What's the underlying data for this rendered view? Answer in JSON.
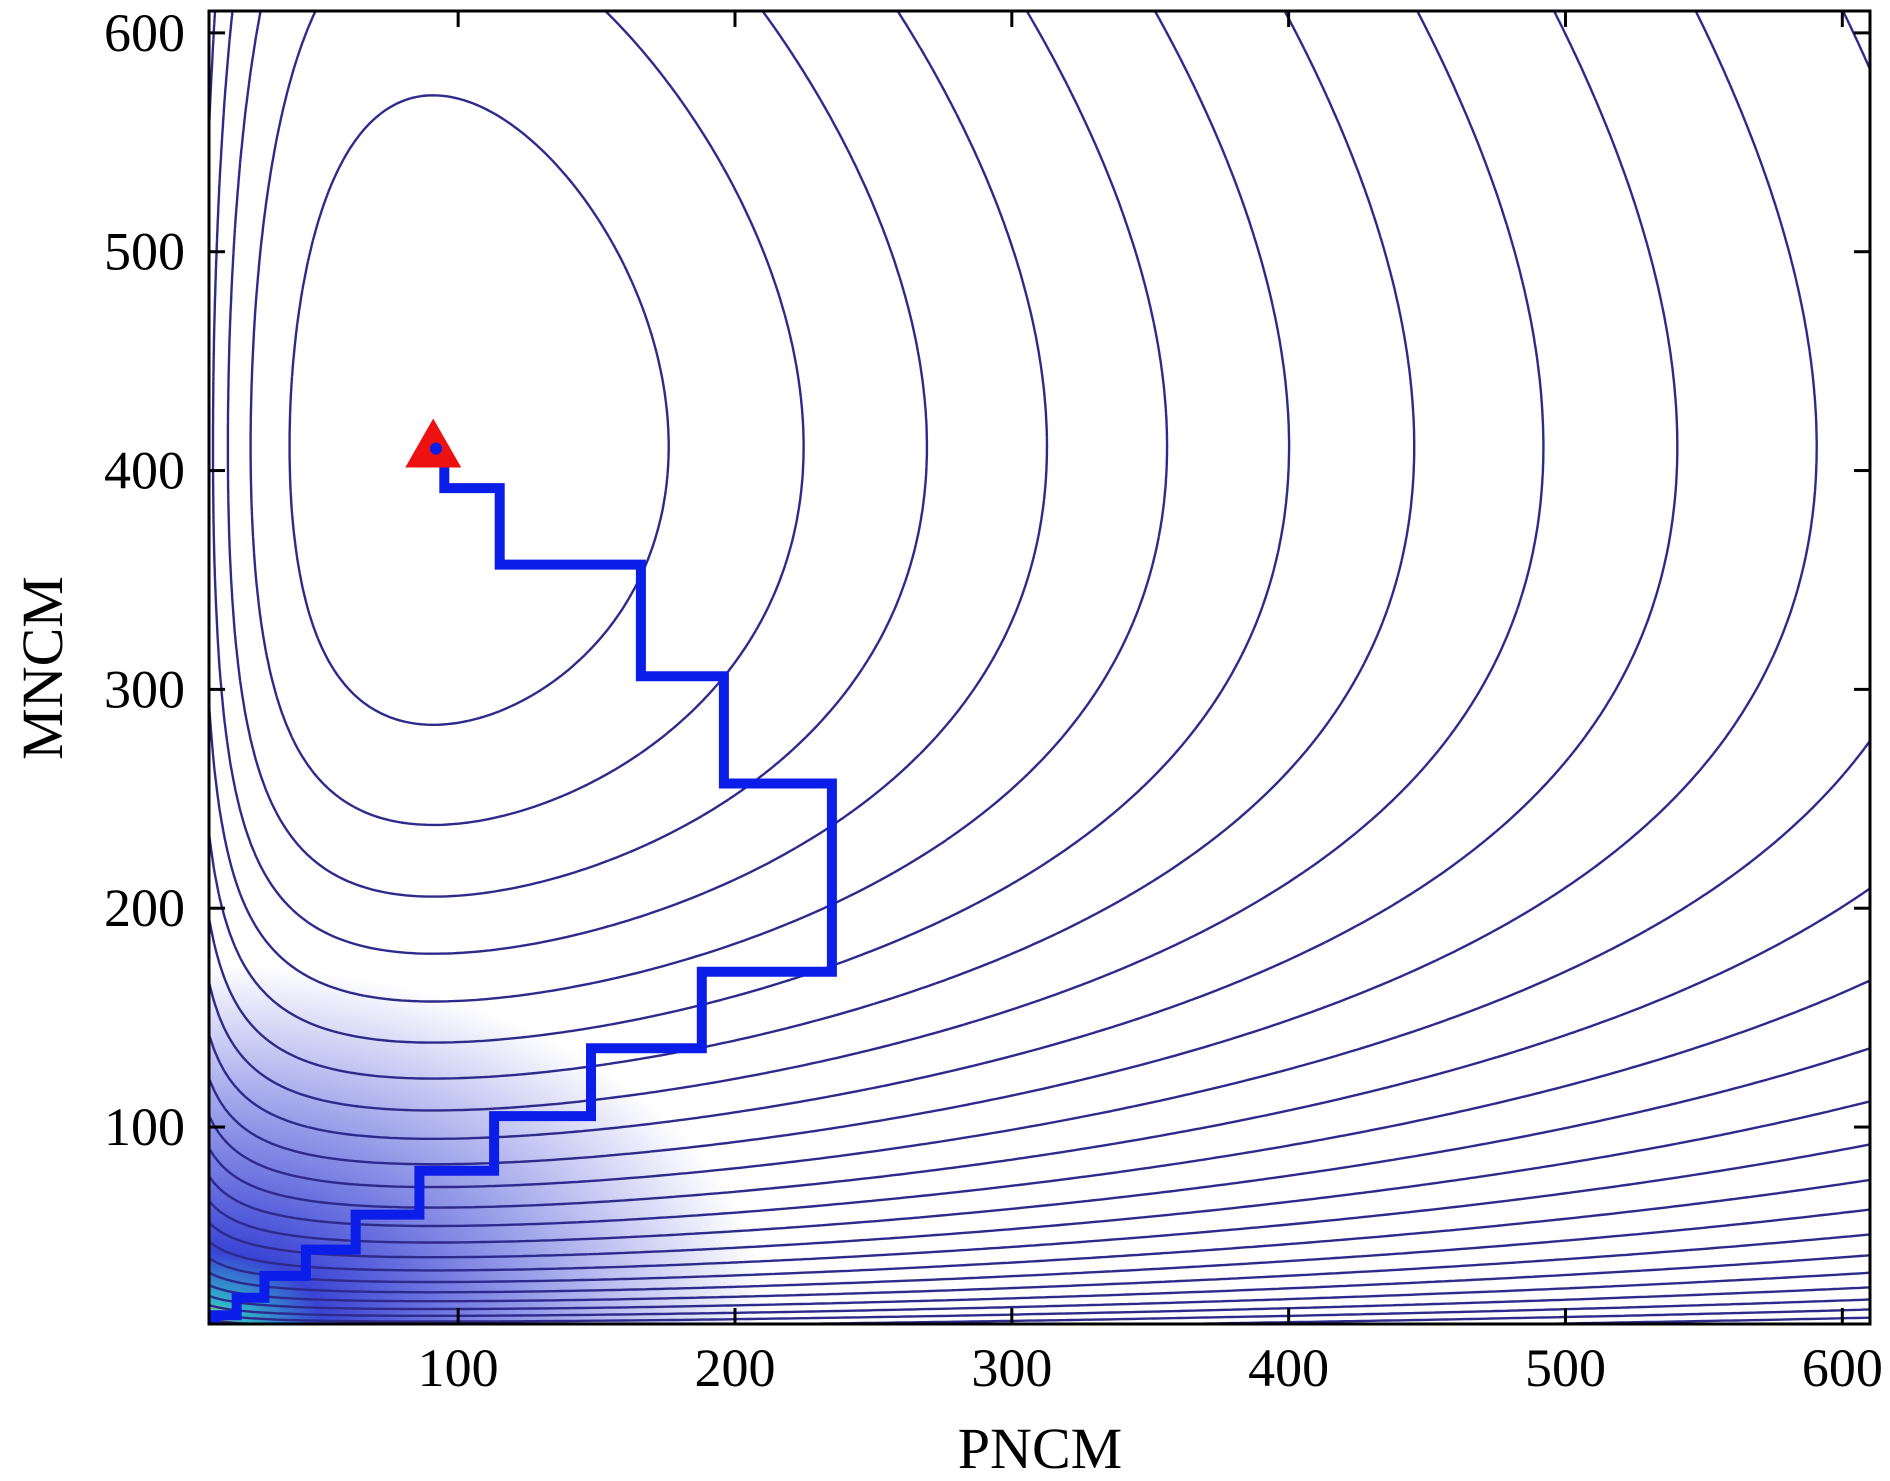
{
  "chart_data": {
    "type": "contour",
    "title": "",
    "xlabel": "PNCM",
    "ylabel": "MNCM",
    "xlim": [
      10,
      610
    ],
    "ylim": [
      10,
      610
    ],
    "x_ticks": [
      100,
      200,
      300,
      400,
      500,
      600
    ],
    "y_ticks": [
      100,
      200,
      300,
      400,
      500,
      600
    ],
    "grid": false,
    "contour_color": "#2e2a8c",
    "fill_colors": [
      "#3a44d4",
      "#2fb8c8",
      "#f0d020"
    ],
    "path_color": "#0b1de8",
    "marker_color": "#ee1111",
    "path": {
      "x": [
        12,
        12,
        20,
        20,
        30,
        30,
        45,
        45,
        63,
        63,
        86,
        86,
        113,
        113,
        148,
        148,
        188,
        188,
        235,
        235,
        196,
        196,
        166,
        166,
        115,
        115,
        95,
        95,
        92
      ],
      "y": [
        10,
        14,
        14,
        22,
        22,
        32,
        32,
        44,
        44,
        60,
        60,
        80,
        80,
        105,
        105,
        136,
        136,
        171,
        171,
        257,
        257,
        306,
        306,
        357,
        357,
        392,
        392,
        404,
        410
      ]
    },
    "optimum_marker": {
      "x": 91,
      "y": 411,
      "shape": "triangle"
    }
  }
}
